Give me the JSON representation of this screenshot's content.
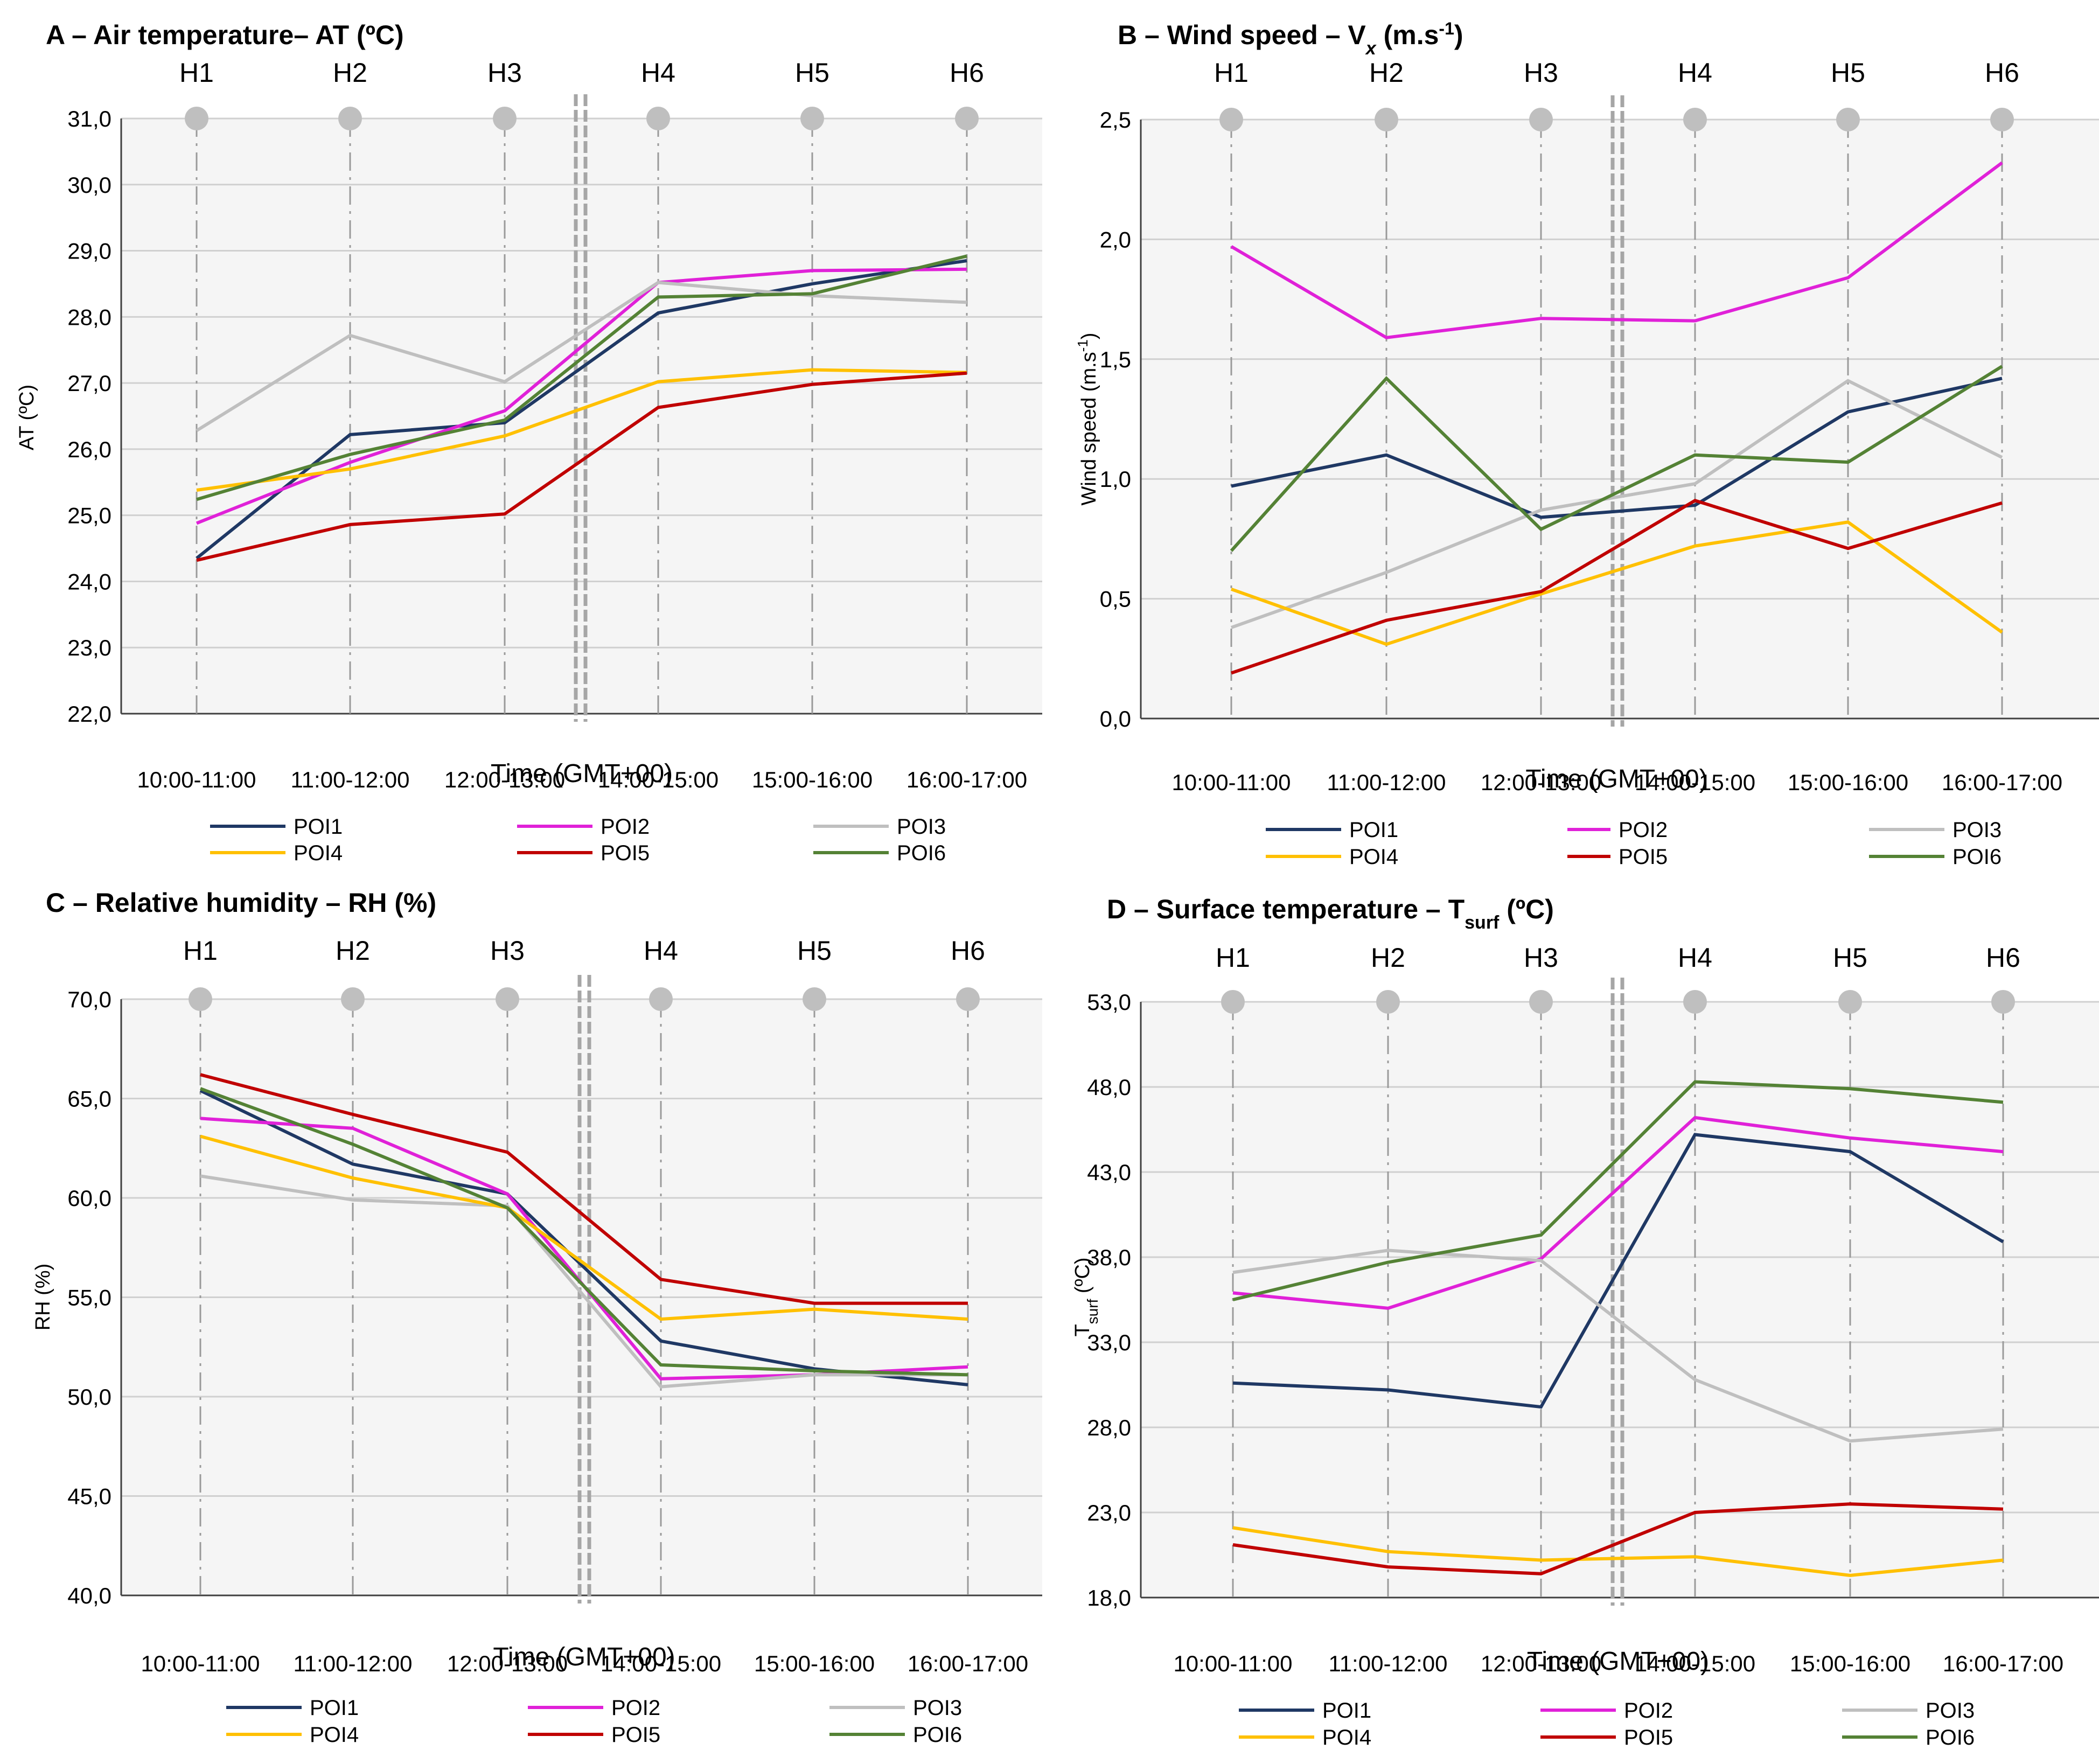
{
  "chart_data": [
    {
      "type": "line",
      "title": {
        "text": "A – Air temperature– AT (ºC)",
        "sub": ""
      },
      "hours": [
        "H1",
        "H2",
        "H3",
        "H4",
        "H5",
        "H6"
      ],
      "categories": [
        "10:00-11:00",
        "11:00-12:00",
        "12:00-13:00",
        "14:00-15:00",
        "15:00-16:00",
        "16:00-17:00"
      ],
      "xlabel": "Time (GMT+00)",
      "ylabel": {
        "main": "AT (ºC)",
        "sub": ""
      },
      "ylim": [
        22.0,
        31.0
      ],
      "yticks": [
        "22,0",
        "23,0",
        "24,0",
        "25,0",
        "26,0",
        "27,0",
        "28,0",
        "29,0",
        "30,0",
        "31,0"
      ],
      "ytick_values": [
        22,
        23,
        24,
        25,
        26,
        27,
        28,
        29,
        30,
        31
      ],
      "series": [
        {
          "name": "POI1",
          "values": [
            24.35,
            26.22,
            26.4,
            28.06,
            28.5,
            28.85
          ]
        },
        {
          "name": "POI2",
          "values": [
            24.88,
            25.8,
            26.58,
            28.52,
            28.7,
            28.72
          ]
        },
        {
          "name": "POI3",
          "values": [
            26.28,
            27.72,
            27.02,
            28.52,
            28.32,
            28.22
          ]
        },
        {
          "name": "POI4",
          "values": [
            25.38,
            25.7,
            26.2,
            27.02,
            27.2,
            27.16
          ]
        },
        {
          "name": "POI5",
          "values": [
            24.32,
            24.86,
            25.02,
            26.63,
            26.98,
            27.15
          ]
        },
        {
          "name": "POI6",
          "values": [
            25.24,
            25.92,
            26.44,
            28.3,
            28.35,
            28.92
          ]
        }
      ]
    },
    {
      "type": "line",
      "title": {
        "text": "B – Wind speed – V",
        "sub": "x",
        "tail": " (m.s",
        "sup": "-1",
        "end": ")"
      },
      "hours": [
        "H1",
        "H2",
        "H3",
        "H4",
        "H5",
        "H6"
      ],
      "categories": [
        "10:00-11:00",
        "11:00-12:00",
        "12:00-13:00",
        "14:00-15:00",
        "15:00-16:00",
        "16:00-17:00"
      ],
      "xlabel": "Time (GMT+00)",
      "ylabel": {
        "main": "Wind speed (m.s",
        "sup": "-1",
        "end": ")"
      },
      "ylim": [
        0.0,
        2.5
      ],
      "yticks": [
        "0,0",
        "0,5",
        "1,0",
        "1,5",
        "2,0",
        "2,5"
      ],
      "ytick_values": [
        0,
        0.5,
        1.0,
        1.5,
        2.0,
        2.5
      ],
      "series": [
        {
          "name": "POI1",
          "values": [
            0.97,
            1.1,
            0.84,
            0.89,
            1.28,
            1.42
          ]
        },
        {
          "name": "POI2",
          "values": [
            1.97,
            1.59,
            1.67,
            1.66,
            1.84,
            2.32
          ]
        },
        {
          "name": "POI3",
          "values": [
            0.38,
            0.61,
            0.87,
            0.98,
            1.41,
            1.09
          ]
        },
        {
          "name": "POI4",
          "values": [
            0.54,
            0.31,
            0.52,
            0.72,
            0.82,
            0.36
          ]
        },
        {
          "name": "POI5",
          "values": [
            0.19,
            0.41,
            0.53,
            0.91,
            0.71,
            0.9
          ]
        },
        {
          "name": "POI6",
          "values": [
            0.7,
            1.42,
            0.79,
            1.1,
            1.07,
            1.47
          ]
        }
      ]
    },
    {
      "type": "line",
      "title": {
        "text": "C – Relative humidity – RH (%)",
        "sub": ""
      },
      "hours": [
        "H1",
        "H2",
        "H3",
        "H4",
        "H5",
        "H6"
      ],
      "categories": [
        "10:00-11:00",
        "11:00-12:00",
        "12:00-13:00",
        "14:00-15:00",
        "15:00-16:00",
        "16:00-17:00"
      ],
      "xlabel": "Time (GMT+00)",
      "ylabel": {
        "main": "RH (%)",
        "sub": ""
      },
      "ylim": [
        40.0,
        70.0
      ],
      "yticks": [
        "40,0",
        "45,0",
        "50,0",
        "55,0",
        "60,0",
        "65,0",
        "70,0"
      ],
      "ytick_values": [
        40,
        45,
        50,
        55,
        60,
        65,
        70
      ],
      "series": [
        {
          "name": "POI1",
          "values": [
            65.4,
            61.7,
            60.2,
            52.8,
            51.4,
            50.6
          ]
        },
        {
          "name": "POI2",
          "values": [
            64.0,
            63.5,
            60.2,
            50.9,
            51.1,
            51.5
          ]
        },
        {
          "name": "POI3",
          "values": [
            61.1,
            59.9,
            59.6,
            50.5,
            51.1,
            51.1
          ]
        },
        {
          "name": "POI4",
          "values": [
            63.1,
            61.0,
            59.5,
            53.9,
            54.4,
            53.9
          ]
        },
        {
          "name": "POI5",
          "values": [
            66.2,
            64.2,
            62.3,
            55.9,
            54.7,
            54.7
          ]
        },
        {
          "name": "POI6",
          "values": [
            65.5,
            62.7,
            59.5,
            51.6,
            51.3,
            51.1
          ]
        }
      ]
    },
    {
      "type": "line",
      "title": {
        "text": "D – Surface temperature – T",
        "sub": "surf",
        "tail": " (ºC)"
      },
      "hours": [
        "H1",
        "H2",
        "H3",
        "H4",
        "H5",
        "H6"
      ],
      "categories": [
        "10:00-11:00",
        "11:00-12:00",
        "12:00-13:00",
        "14:00-15:00",
        "15:00-16:00",
        "16:00-17:00"
      ],
      "xlabel": "Time (GMT+00)",
      "ylabel": {
        "main": "T",
        "sub": "surf",
        "end": " (ºC)"
      },
      "ylim": [
        18.0,
        53.0
      ],
      "yticks": [
        "18,0",
        "23,0",
        "28,0",
        "33,0",
        "38,0",
        "43,0",
        "48,0",
        "53,0"
      ],
      "ytick_values": [
        18,
        23,
        28,
        33,
        38,
        43,
        48,
        53
      ],
      "series": [
        {
          "name": "POI1",
          "values": [
            30.6,
            30.2,
            29.2,
            45.2,
            44.2,
            38.9
          ]
        },
        {
          "name": "POI2",
          "values": [
            35.9,
            35.0,
            37.9,
            46.2,
            45.0,
            44.2
          ]
        },
        {
          "name": "POI3",
          "values": [
            37.1,
            38.4,
            37.8,
            30.8,
            27.2,
            27.9
          ]
        },
        {
          "name": "POI4",
          "values": [
            22.1,
            20.7,
            20.2,
            20.4,
            19.3,
            20.2
          ]
        },
        {
          "name": "POI5",
          "values": [
            21.1,
            19.8,
            19.4,
            23.0,
            23.5,
            23.2
          ]
        },
        {
          "name": "POI6",
          "values": [
            35.5,
            37.7,
            39.3,
            48.3,
            47.9,
            47.1
          ]
        }
      ]
    }
  ],
  "colors": {
    "POI1": "#1f3864",
    "POI2": "#e021d8",
    "POI3": "#bfbfbf",
    "POI4": "#ffc000",
    "POI5": "#c00000",
    "POI6": "#548235",
    "plot_bg": "#f5f5f5",
    "grid": "#d0d0d0",
    "marker": "#bfbfbf",
    "gap_line": "#a6a6a6"
  }
}
